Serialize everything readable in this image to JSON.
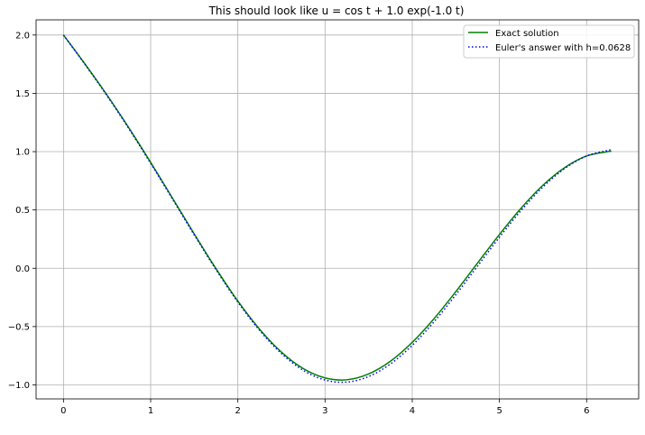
{
  "chart_data": {
    "type": "line",
    "title": "This should look like u = cos t + 1.0 exp(-1.0 t)",
    "xlabel": "",
    "ylabel": "",
    "xlim": [
      -0.314,
      6.597
    ],
    "ylim": [
      -1.12,
      2.13
    ],
    "xticks": [
      0,
      1,
      2,
      3,
      4,
      5,
      6
    ],
    "xtick_labels": [
      "0",
      "1",
      "2",
      "3",
      "4",
      "5",
      "6"
    ],
    "yticks": [
      -1.0,
      -0.5,
      0.0,
      0.5,
      1.0,
      1.5,
      2.0
    ],
    "ytick_labels": [
      "−1.0",
      "−0.5",
      "0.0",
      "0.5",
      "1.0",
      "1.5",
      "2.0"
    ],
    "grid": true,
    "legend_position": "top-right",
    "colors": {
      "exact": "#008000",
      "euler": "#0000ff",
      "grid": "#b0b0b0"
    },
    "series": [
      {
        "name": "Exact solution",
        "style": "solid",
        "x": [
          0.0,
          0.25,
          0.5,
          0.75,
          1.0,
          1.25,
          1.5,
          1.75,
          2.0,
          2.25,
          2.5,
          2.75,
          3.0,
          3.25,
          3.5,
          3.75,
          4.0,
          4.25,
          4.5,
          4.75,
          5.0,
          5.25,
          5.5,
          5.75,
          6.0,
          6.25,
          6.283
        ],
        "y": [
          2.0,
          1.748,
          1.484,
          1.204,
          0.908,
          0.602,
          0.294,
          -0.004,
          -0.281,
          -0.523,
          -0.719,
          -0.86,
          -0.94,
          -0.956,
          -0.906,
          -0.797,
          -0.635,
          -0.432,
          -0.2,
          0.046,
          0.29,
          0.517,
          0.713,
          0.864,
          0.963,
          1.001,
          1.002
        ]
      },
      {
        "name": "Euler's answer with h=0.0628",
        "style": "dotted",
        "x": [
          0.0,
          0.25,
          0.5,
          0.75,
          1.0,
          1.25,
          1.5,
          1.75,
          2.0,
          2.25,
          2.5,
          2.75,
          3.0,
          3.25,
          3.5,
          3.75,
          4.0,
          4.25,
          4.5,
          4.75,
          5.0,
          5.25,
          5.5,
          5.75,
          6.0,
          6.25,
          6.283
        ],
        "y": [
          2.0,
          1.745,
          1.479,
          1.197,
          0.9,
          0.594,
          0.286,
          -0.012,
          -0.29,
          -0.533,
          -0.731,
          -0.875,
          -0.958,
          -0.976,
          -0.928,
          -0.821,
          -0.661,
          -0.459,
          -0.227,
          0.02,
          0.266,
          0.497,
          0.698,
          0.856,
          0.963,
          1.012,
          1.016
        ]
      }
    ]
  }
}
